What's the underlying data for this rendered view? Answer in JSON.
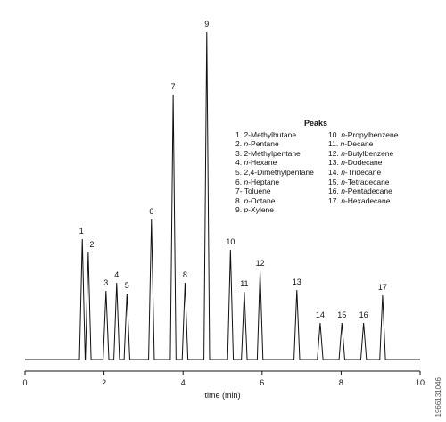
{
  "chart_data": {
    "type": "line",
    "xlabel": "time (min)",
    "xlim": [
      0,
      10
    ],
    "xticks": [
      "0",
      "2",
      "4",
      "6",
      "8",
      "10"
    ],
    "baseline": 0,
    "peaks": [
      {
        "label": "1",
        "t": 1.45,
        "height": 135
      },
      {
        "label": "2",
        "t": 1.6,
        "height": 120
      },
      {
        "label": "3",
        "t": 2.05,
        "height": 77
      },
      {
        "label": "4",
        "t": 2.32,
        "height": 86
      },
      {
        "label": "5",
        "t": 2.58,
        "height": 74
      },
      {
        "label": "6",
        "t": 3.2,
        "height": 157
      },
      {
        "label": "7",
        "t": 3.75,
        "height": 297
      },
      {
        "label": "8",
        "t": 4.05,
        "height": 86
      },
      {
        "label": "9",
        "t": 4.6,
        "height": 367
      },
      {
        "label": "10",
        "t": 5.2,
        "height": 123
      },
      {
        "label": "11",
        "t": 5.55,
        "height": 76
      },
      {
        "label": "12",
        "t": 5.95,
        "height": 99
      },
      {
        "label": "13",
        "t": 6.88,
        "height": 78
      },
      {
        "label": "14",
        "t": 7.47,
        "height": 41
      },
      {
        "label": "15",
        "t": 8.02,
        "height": 41
      },
      {
        "label": "16",
        "t": 8.57,
        "height": 41
      },
      {
        "label": "17",
        "t": 9.05,
        "height": 72
      }
    ]
  },
  "legend": {
    "title": "Peaks",
    "left": [
      {
        "num": "1. ",
        "prefix": "",
        "name": "2-Methylbutane"
      },
      {
        "num": "2. ",
        "prefix": "n",
        "name": "-Pentane"
      },
      {
        "num": "3. ",
        "prefix": "",
        "name": "2-Methylpentane"
      },
      {
        "num": "4. ",
        "prefix": "n",
        "name": "-Hexane"
      },
      {
        "num": "5. ",
        "prefix": "",
        "name": "2,4-Dimethylpentane"
      },
      {
        "num": "6. ",
        "prefix": "n",
        "name": "-Heptane"
      },
      {
        "num": "7- ",
        "prefix": "",
        "name": "Toluene"
      },
      {
        "num": "8. ",
        "prefix": "n",
        "name": "-Octane"
      },
      {
        "num": "9. ",
        "prefix": "p",
        "name": "-Xylene"
      }
    ],
    "right": [
      {
        "num": "10. ",
        "prefix": "n",
        "name": "-Propylbenzene"
      },
      {
        "num": "11. ",
        "prefix": "n",
        "name": "-Decane"
      },
      {
        "num": "12. ",
        "prefix": "n",
        "name": "-Butylbenzene"
      },
      {
        "num": "13. ",
        "prefix": "n",
        "name": "-Dodecane"
      },
      {
        "num": "14. ",
        "prefix": "n",
        "name": "-Tridecane"
      },
      {
        "num": "15. ",
        "prefix": "n",
        "name": "-Tetradecane"
      },
      {
        "num": "16. ",
        "prefix": "n",
        "name": "-Pentadecane"
      },
      {
        "num": "17. ",
        "prefix": "n",
        "name": "-Hexadecane"
      }
    ]
  },
  "watermark": "1966131046",
  "colors": {
    "trace": "#111111",
    "background": "#ffffff"
  }
}
